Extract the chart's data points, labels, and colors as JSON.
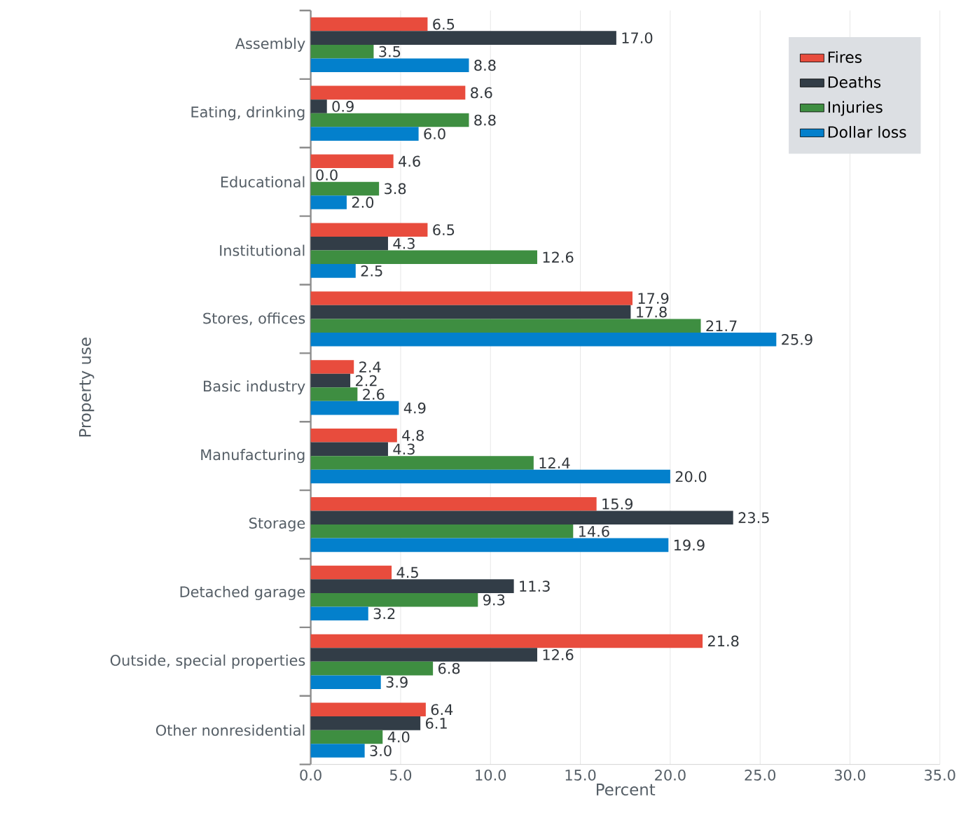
{
  "chart_data": {
    "type": "bar",
    "orientation": "horizontal",
    "categories": [
      "Assembly",
      "Eating, drinking",
      "Educational",
      "Institutional",
      "Stores, offices",
      "Basic industry",
      "Manufacturing",
      "Storage",
      "Detached garage",
      "Outside, special properties",
      "Other nonresidential"
    ],
    "series": [
      {
        "name": "Fires",
        "color": "#e84c3d",
        "values": [
          6.5,
          8.6,
          4.6,
          6.5,
          17.9,
          2.4,
          4.8,
          15.9,
          4.5,
          21.8,
          6.4
        ],
        "value_labels": [
          "6.5",
          "8.6",
          "4.6",
          "6.5",
          "17.9",
          "2.4",
          "4.8",
          "15.9",
          "4.5",
          "21.8",
          "6.4"
        ]
      },
      {
        "name": "Deaths",
        "color": "#323d47",
        "values": [
          17.0,
          0.9,
          0.0,
          4.3,
          17.8,
          2.2,
          4.3,
          23.5,
          11.3,
          12.6,
          6.1
        ],
        "value_labels": [
          "17.0",
          "0.9",
          "0.0",
          "4.3",
          "17.8",
          "2.2",
          "4.3",
          "23.5",
          "11.3",
          "12.6",
          "6.1"
        ]
      },
      {
        "name": "Injuries",
        "color": "#3e8e41",
        "values": [
          3.5,
          8.8,
          3.8,
          12.6,
          21.7,
          2.6,
          12.4,
          14.6,
          9.3,
          6.8,
          4.0
        ],
        "value_labels": [
          "3.5",
          "8.8",
          "3.8",
          "12.6",
          "21.7",
          "2.6",
          "12.4",
          "14.6",
          "9.3",
          "6.8",
          "4.0"
        ]
      },
      {
        "name": "Dollar loss",
        "color": "#0380cc",
        "values": [
          8.8,
          6.0,
          2.0,
          2.5,
          25.9,
          4.9,
          20.0,
          19.9,
          3.2,
          3.9,
          3.0
        ],
        "value_labels": [
          "8.8",
          "6.0",
          "2.0",
          "2.5",
          "25.9",
          "4.9",
          "20.0",
          "19.9",
          "3.2",
          "3.9",
          "3.0"
        ]
      }
    ],
    "xlabel": "Percent",
    "ylabel": "Property use",
    "xlim": [
      0,
      35
    ],
    "xticks": [
      {
        "value": 0,
        "label": "0.0"
      },
      {
        "value": 5,
        "label": "5.0"
      },
      {
        "value": 10,
        "label": "10.0"
      },
      {
        "value": 15,
        "label": "15.0"
      },
      {
        "value": 20,
        "label": "20.0"
      },
      {
        "value": 25,
        "label": "25.0"
      },
      {
        "value": 30,
        "label": "30.0"
      },
      {
        "value": 35,
        "label": "35.0"
      }
    ],
    "grid": "x",
    "legend": "top right"
  }
}
